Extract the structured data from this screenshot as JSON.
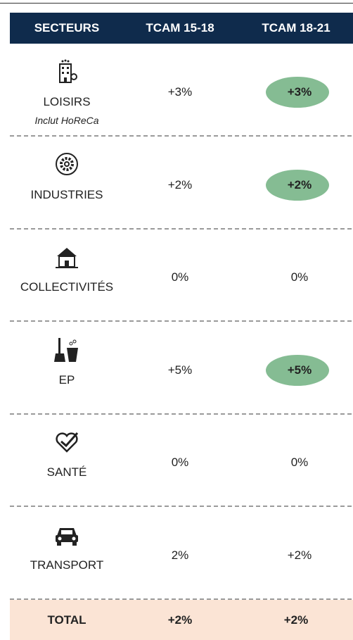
{
  "header": [
    "SECTEURS",
    "TCAM 15-18",
    "TCAM 18-21"
  ],
  "rows": [
    {
      "sector": "LOISIRS",
      "note": "Inclut HoReCa",
      "tcam_15_18": "+3%",
      "tcam_18_21": "+3%",
      "highlight": true
    },
    {
      "sector": "INDUSTRIES",
      "tcam_15_18": "+2%",
      "tcam_18_21": "+2%",
      "highlight": true
    },
    {
      "sector": "COLLECTIVITÉS",
      "tcam_15_18": "0%",
      "tcam_18_21": "0%",
      "highlight": false
    },
    {
      "sector": "EP",
      "tcam_15_18": "+5%",
      "tcam_18_21": "+5%",
      "highlight": true
    },
    {
      "sector": "SANTÉ",
      "tcam_15_18": "0%",
      "tcam_18_21": "0%",
      "highlight": false
    },
    {
      "sector": "TRANSPORT",
      "tcam_15_18": "2%",
      "tcam_18_21": "+2%",
      "highlight": false
    }
  ],
  "total": {
    "label": "TOTAL",
    "tcam_15_18": "+2%",
    "tcam_18_21": "+2%"
  }
}
